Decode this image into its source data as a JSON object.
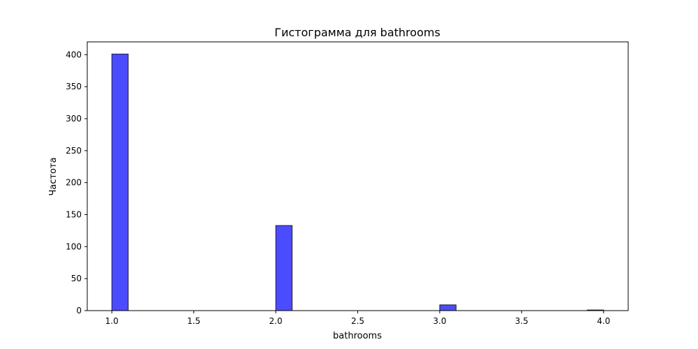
{
  "chart_data": {
    "type": "bar",
    "title": "Гистограмма для bathrooms",
    "xlabel": "bathrooms",
    "ylabel": "Частота",
    "xlim": [
      0.85,
      4.15
    ],
    "ylim": [
      0,
      420
    ],
    "x_ticks": [
      1.0,
      1.5,
      2.0,
      2.5,
      3.0,
      3.5,
      4.0
    ],
    "x_tick_labels": [
      "1.0",
      "1.5",
      "2.0",
      "2.5",
      "3.0",
      "3.5",
      "4.0"
    ],
    "y_ticks": [
      0,
      50,
      100,
      150,
      200,
      250,
      300,
      350,
      400
    ],
    "y_tick_labels": [
      "0",
      "50",
      "100",
      "150",
      "200",
      "250",
      "300",
      "350",
      "400"
    ],
    "bin_width": 0.1,
    "bars": [
      {
        "x_start": 1.0,
        "value": 401
      },
      {
        "x_start": 2.0,
        "value": 133
      },
      {
        "x_start": 3.0,
        "value": 9
      },
      {
        "x_start": 3.9,
        "value": 1
      }
    ],
    "grid": false,
    "legend": "none",
    "colors": {
      "bar_fill": "#0000ff",
      "bar_opacity": 0.7,
      "bar_edge": "#000000"
    }
  }
}
